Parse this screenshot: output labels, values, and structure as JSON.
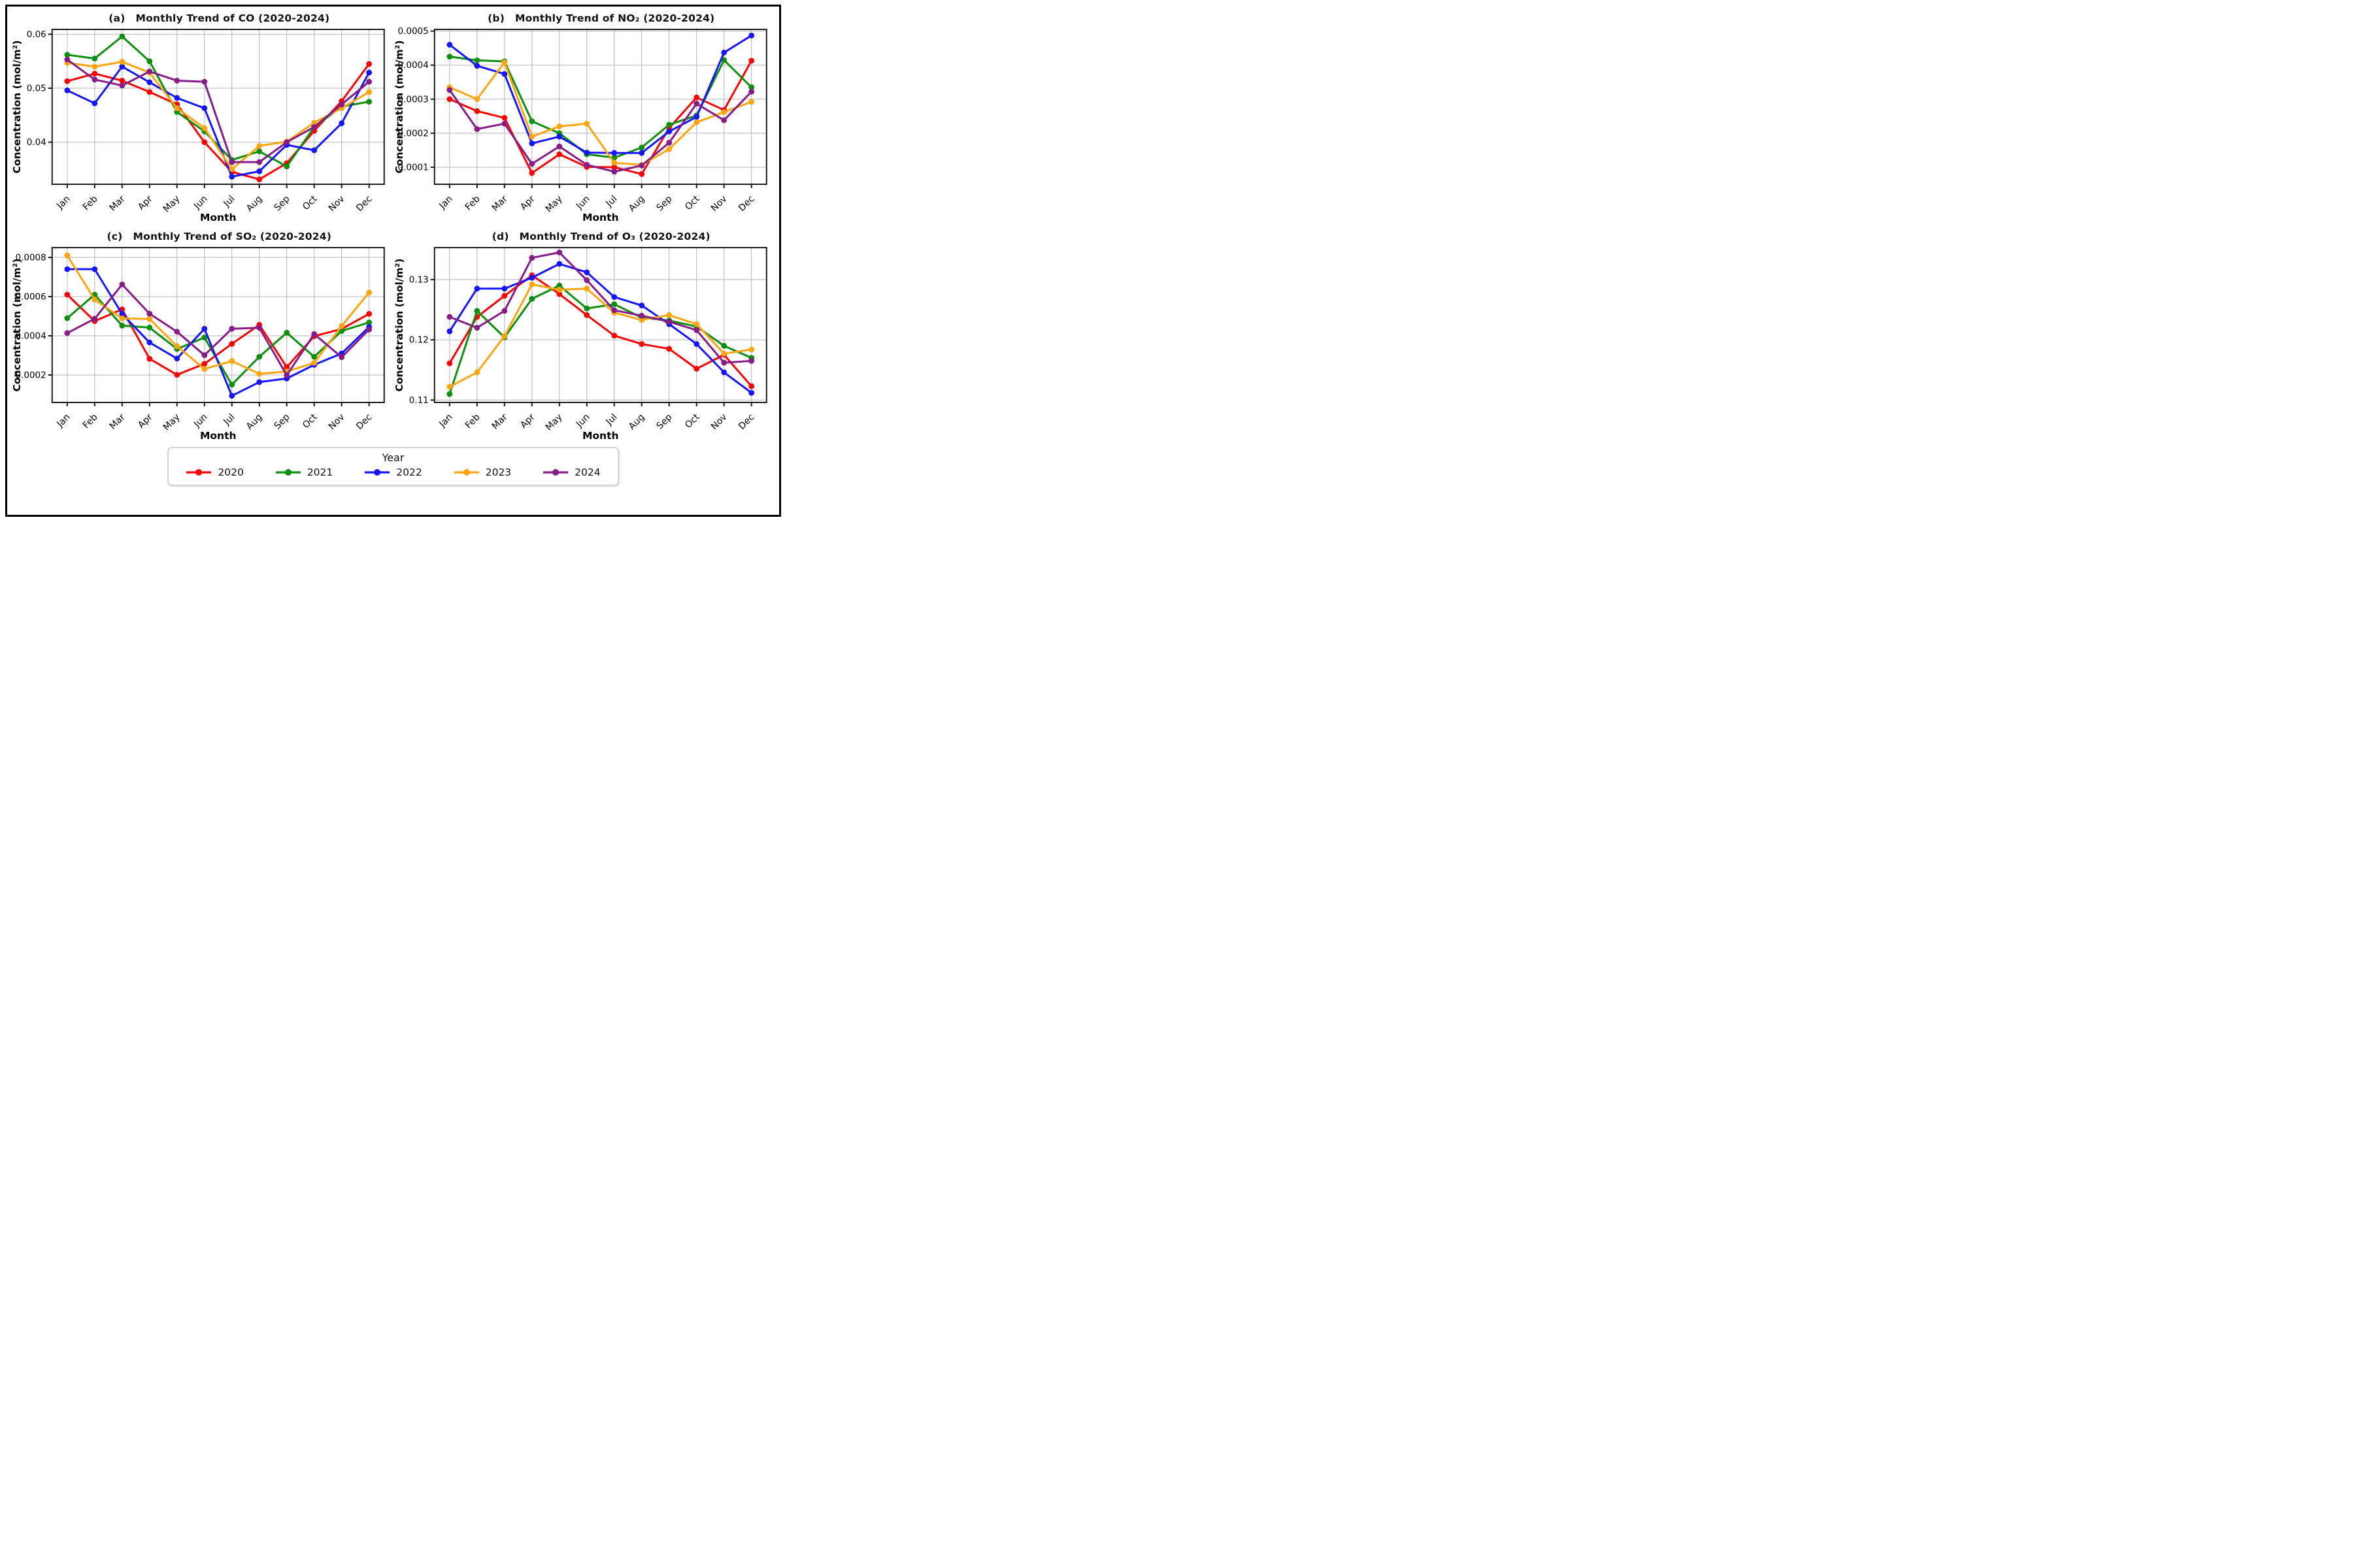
{
  "figure": {
    "background": "#ffffff",
    "border_color": "#000000",
    "grid_color": "#b4b4b4",
    "spine_color": "#1a1a1a",
    "legend": {
      "title": "Year",
      "entries": [
        {
          "label": "2020",
          "color": "#ff0000"
        },
        {
          "label": "2021",
          "color": "#0c8f0c"
        },
        {
          "label": "2022",
          "color": "#1515ff"
        },
        {
          "label": "2023",
          "color": "#ffa512"
        },
        {
          "label": "2024",
          "color": "#871b87"
        }
      ]
    }
  },
  "chart_data": [
    {
      "id": "a",
      "type": "line",
      "panel_label": "(a)",
      "title": "Monthly Trend of CO (2020-2024)",
      "xlabel": "Month",
      "ylabel": "Concentration (mol/m²)",
      "categories": [
        "Jan",
        "Feb",
        "Mar",
        "Apr",
        "May",
        "Jun",
        "Jul",
        "Aug",
        "Sep",
        "Oct",
        "Nov",
        "Dec"
      ],
      "ylim": [
        0.0322,
        0.0609
      ],
      "grid": true,
      "legend_position": "figure-bottom",
      "yticks": [
        {
          "v": 0.04,
          "label": "0.04"
        },
        {
          "v": 0.05,
          "label": "0.05"
        },
        {
          "v": 0.06,
          "label": "0.06"
        }
      ],
      "series": [
        {
          "name": "2020",
          "color": "#ff0000",
          "values": [
            0.0513,
            0.0527,
            0.0514,
            0.0493,
            0.047,
            0.04,
            0.0345,
            0.0331,
            0.0361,
            0.0421,
            0.0476,
            0.0545
          ]
        },
        {
          "name": "2021",
          "color": "#0c8f0c",
          "values": [
            0.0562,
            0.0555,
            0.0596,
            0.055,
            0.0456,
            0.042,
            0.0367,
            0.0383,
            0.0355,
            0.0428,
            0.0466,
            0.0475
          ]
        },
        {
          "name": "2022",
          "color": "#1515ff",
          "values": [
            0.0496,
            0.0472,
            0.054,
            0.0511,
            0.0482,
            0.0463,
            0.0336,
            0.0346,
            0.0395,
            0.0385,
            0.0435,
            0.0529
          ]
        },
        {
          "name": "2023",
          "color": "#ffa512",
          "values": [
            0.0547,
            0.054,
            0.0549,
            0.0529,
            0.0463,
            0.0426,
            0.035,
            0.0393,
            0.0401,
            0.0436,
            0.0463,
            0.0493
          ]
        },
        {
          "name": "2024",
          "color": "#871b87",
          "values": [
            0.0553,
            0.0516,
            0.0505,
            0.0531,
            0.0514,
            0.0512,
            0.0363,
            0.0363,
            0.04,
            0.0428,
            0.047,
            0.0512
          ]
        }
      ]
    },
    {
      "id": "b",
      "type": "line",
      "panel_label": "(b)",
      "title": "Monthly Trend of NO₂ (2020-2024)",
      "xlabel": "Month",
      "ylabel": "Concentration (mol/m²)",
      "categories": [
        "Jan",
        "Feb",
        "Mar",
        "Apr",
        "May",
        "Jun",
        "Jul",
        "Aug",
        "Sep",
        "Oct",
        "Nov",
        "Dec"
      ],
      "ylim": [
        5e-05,
        0.000505
      ],
      "grid": true,
      "legend_position": "figure-bottom",
      "yticks": [
        {
          "v": 0.0001,
          "label": "0.0001"
        },
        {
          "v": 0.0002,
          "label": "0.0002"
        },
        {
          "v": 0.0003,
          "label": "0.0003"
        },
        {
          "v": 0.0004,
          "label": "0.0004"
        },
        {
          "v": 0.0005,
          "label": "0.0005"
        }
      ],
      "series": [
        {
          "name": "2020",
          "color": "#ff0000",
          "values": [
            0.0003,
            0.000265,
            0.000245,
            8.3e-05,
            0.000138,
            0.000101,
            0.0001,
            8e-05,
            0.000215,
            0.000305,
            0.000268,
            0.000413
          ]
        },
        {
          "name": "2021",
          "color": "#0c8f0c",
          "values": [
            0.000425,
            0.000414,
            0.000411,
            0.000235,
            0.0002,
            0.000138,
            0.000128,
            0.000158,
            0.000225,
            0.000252,
            0.000415,
            0.000335
          ]
        },
        {
          "name": "2022",
          "color": "#1515ff",
          "values": [
            0.00046,
            0.000398,
            0.000374,
            0.00017,
            0.00019,
            0.000143,
            0.000142,
            0.000142,
            0.000205,
            0.000248,
            0.000437,
            0.000487
          ]
        },
        {
          "name": "2023",
          "color": "#ffa512",
          "values": [
            0.000335,
            0.0003,
            0.000408,
            0.00019,
            0.00022,
            0.000228,
            0.000113,
            0.000107,
            0.000153,
            0.000232,
            0.000262,
            0.000292
          ]
        },
        {
          "name": "2024",
          "color": "#871b87",
          "values": [
            0.000327,
            0.000212,
            0.000228,
            0.00011,
            0.000161,
            0.000107,
            8.7e-05,
            0.000105,
            0.000172,
            0.000287,
            0.000238,
            0.000322
          ]
        }
      ]
    },
    {
      "id": "c",
      "type": "line",
      "panel_label": "(c)",
      "title": "Monthly Trend of SO₂ (2020-2024)",
      "xlabel": "Month",
      "ylabel": "Concentration (mol/m²)",
      "categories": [
        "Jan",
        "Feb",
        "Mar",
        "Apr",
        "May",
        "Jun",
        "Jul",
        "Aug",
        "Sep",
        "Oct",
        "Nov",
        "Dec"
      ],
      "ylim": [
        6e-05,
        0.00085
      ],
      "grid": true,
      "legend_position": "figure-bottom",
      "yticks": [
        {
          "v": 0.0002,
          "label": "0.0002"
        },
        {
          "v": 0.0004,
          "label": "0.0004"
        },
        {
          "v": 0.0006,
          "label": "0.0006"
        },
        {
          "v": 0.0008,
          "label": "0.0008"
        }
      ],
      "series": [
        {
          "name": "2020",
          "color": "#ff0000",
          "values": [
            0.00061,
            0.000475,
            0.000535,
            0.000283,
            0.000201,
            0.000257,
            0.000359,
            0.000456,
            0.00024,
            0.000398,
            0.000435,
            0.000512
          ]
        },
        {
          "name": "2021",
          "color": "#0c8f0c",
          "values": [
            0.00049,
            0.00061,
            0.000452,
            0.000442,
            0.000333,
            0.000391,
            0.000151,
            0.000293,
            0.000416,
            0.000293,
            0.000425,
            0.000468
          ]
        },
        {
          "name": "2022",
          "color": "#1515ff",
          "values": [
            0.00074,
            0.00074,
            0.000512,
            0.000366,
            0.000284,
            0.000436,
            9.4e-05,
            0.000164,
            0.000182,
            0.000252,
            0.00031,
            0.000445
          ]
        },
        {
          "name": "2023",
          "color": "#ffa512",
          "values": [
            0.00081,
            0.000585,
            0.000489,
            0.000486,
            0.000347,
            0.000231,
            0.000271,
            0.000206,
            0.000218,
            0.000262,
            0.00045,
            0.000621
          ]
        },
        {
          "name": "2024",
          "color": "#871b87",
          "values": [
            0.000414,
            0.000487,
            0.000662,
            0.000513,
            0.000421,
            0.000301,
            0.000436,
            0.000441,
            0.000199,
            0.000409,
            0.000291,
            0.000432
          ]
        }
      ]
    },
    {
      "id": "d",
      "type": "line",
      "panel_label": "(d)",
      "title": "Monthly Trend of O₃ (2020-2024)",
      "xlabel": "Month",
      "ylabel": "Concentration (mol/m²)",
      "categories": [
        "Jan",
        "Feb",
        "Mar",
        "Apr",
        "May",
        "Jun",
        "Jul",
        "Aug",
        "Sep",
        "Oct",
        "Nov",
        "Dec"
      ],
      "ylim": [
        0.1096,
        0.1353
      ],
      "grid": true,
      "legend_position": "figure-bottom",
      "yticks": [
        {
          "v": 0.11,
          "label": "0.11"
        },
        {
          "v": 0.12,
          "label": "0.12"
        },
        {
          "v": 0.13,
          "label": "0.13"
        }
      ],
      "series": [
        {
          "name": "2020",
          "color": "#ff0000",
          "values": [
            0.1161,
            0.1238,
            0.1273,
            0.1307,
            0.1276,
            0.1241,
            0.1207,
            0.1193,
            0.1185,
            0.1152,
            0.1175,
            0.1123
          ]
        },
        {
          "name": "2021",
          "color": "#0c8f0c",
          "values": [
            0.111,
            0.1248,
            0.1204,
            0.1268,
            0.129,
            0.1252,
            0.1259,
            0.1237,
            0.1232,
            0.1222,
            0.119,
            0.117
          ]
        },
        {
          "name": "2022",
          "color": "#1515ff",
          "values": [
            0.1214,
            0.1285,
            0.1285,
            0.1303,
            0.1326,
            0.1312,
            0.1271,
            0.1257,
            0.1226,
            0.1193,
            0.1146,
            0.1112
          ]
        },
        {
          "name": "2023",
          "color": "#ffa512",
          "values": [
            0.1122,
            0.1146,
            0.1206,
            0.1292,
            0.1283,
            0.1285,
            0.1245,
            0.1233,
            0.1241,
            0.1226,
            0.1177,
            0.1184
          ]
        },
        {
          "name": "2024",
          "color": "#871b87",
          "values": [
            0.1238,
            0.122,
            0.1248,
            0.1336,
            0.1345,
            0.1299,
            0.1249,
            0.124,
            0.123,
            0.1216,
            0.1162,
            0.1165
          ]
        }
      ]
    }
  ]
}
